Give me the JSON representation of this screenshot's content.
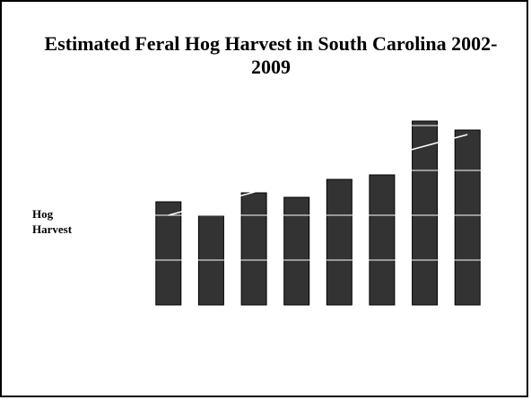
{
  "slide": {
    "title": "Estimated  Feral Hog Harvest in South Carolina 2002-2009",
    "ylabel_line1": "Hog",
    "ylabel_line2": "Harvest"
  },
  "chart_data": {
    "type": "bar",
    "title": "Estimated  Feral Hog Harvest in South Carolina 2002-2009",
    "ylabel": "Hog Harvest",
    "xlabel": "",
    "categories": [
      "",
      "",
      "",
      "",
      "",
      "",
      "",
      ""
    ],
    "values": [
      23,
      20,
      25,
      24,
      28,
      29,
      41,
      39
    ],
    "trendline": {
      "start": 20,
      "end": 38
    },
    "ylim": [
      0,
      42
    ],
    "grid": true,
    "bar_color": "#333333",
    "trend_color": "#ffffff",
    "grid_color": "#ffffff"
  }
}
